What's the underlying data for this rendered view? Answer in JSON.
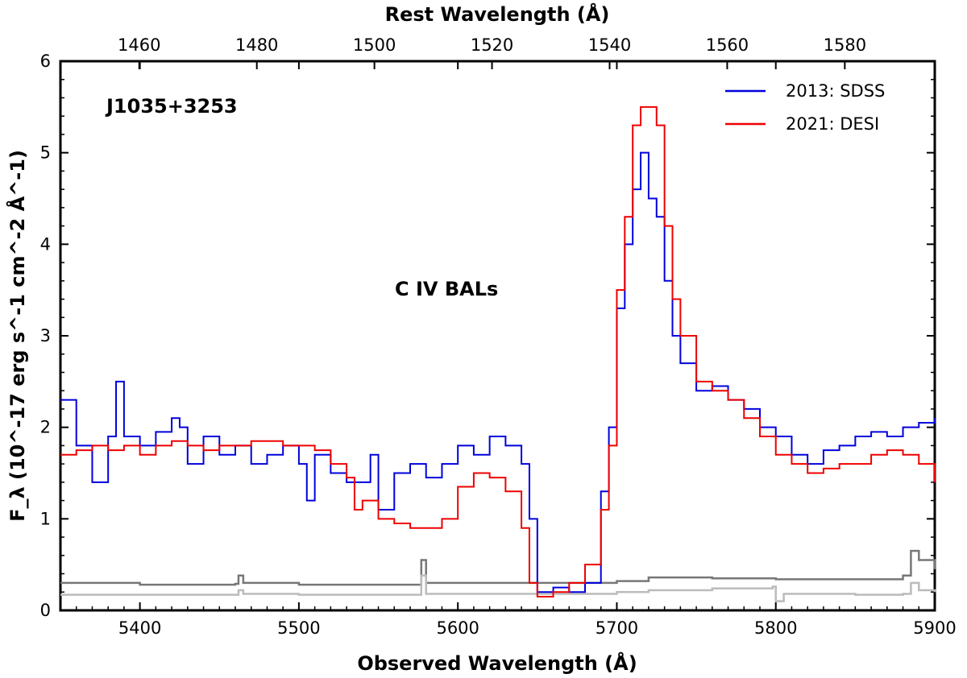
{
  "chart_data": {
    "type": "line",
    "title": "",
    "xlabel": "Observed Wavelength (Å)",
    "ylabel": "F_λ (10^-17 erg s^-1 cm^-2 Å^-1)",
    "top_xlabel": "Rest Wavelength (Å)",
    "xlim": [
      5350,
      5900
    ],
    "ylim": [
      0,
      6
    ],
    "top_xlim": [
      1446.6,
      1595.3
    ],
    "x_ticks": [
      5400,
      5500,
      5600,
      5700,
      5800,
      5900
    ],
    "y_ticks": [
      0,
      1,
      2,
      3,
      4,
      5,
      6
    ],
    "top_ticks": [
      1460,
      1480,
      1500,
      1520,
      1540,
      1560,
      1580
    ],
    "object_label": "J1035+3253",
    "feature_label": "C IV BALs",
    "legend": {
      "position": "top-right",
      "entries": [
        "2013: SDSS",
        "2021: DESI"
      ]
    },
    "colors": {
      "sdss": "#0000dd",
      "desi": "#ee0000",
      "err_sdss": "#777777",
      "err_desi": "#bbbbbb"
    },
    "series": [
      {
        "name": "2013: SDSS",
        "color": "#0000dd",
        "points": [
          [
            5350,
            2.3
          ],
          [
            5360,
            1.8
          ],
          [
            5370,
            1.4
          ],
          [
            5380,
            1.9
          ],
          [
            5385,
            2.5
          ],
          [
            5390,
            1.9
          ],
          [
            5400,
            1.8
          ],
          [
            5410,
            1.95
          ],
          [
            5420,
            2.1
          ],
          [
            5425,
            2.0
          ],
          [
            5430,
            1.6
          ],
          [
            5440,
            1.9
          ],
          [
            5450,
            1.7
          ],
          [
            5460,
            1.8
          ],
          [
            5470,
            1.6
          ],
          [
            5480,
            1.7
          ],
          [
            5490,
            1.8
          ],
          [
            5500,
            1.6
          ],
          [
            5505,
            1.2
          ],
          [
            5510,
            1.7
          ],
          [
            5520,
            1.5
          ],
          [
            5530,
            1.4
          ],
          [
            5540,
            1.4
          ],
          [
            5545,
            1.7
          ],
          [
            5550,
            1.1
          ],
          [
            5560,
            1.5
          ],
          [
            5570,
            1.6
          ],
          [
            5580,
            1.45
          ],
          [
            5590,
            1.6
          ],
          [
            5600,
            1.8
          ],
          [
            5610,
            1.7
          ],
          [
            5620,
            1.9
          ],
          [
            5630,
            1.8
          ],
          [
            5640,
            1.6
          ],
          [
            5645,
            1.0
          ],
          [
            5650,
            0.2
          ],
          [
            5660,
            0.25
          ],
          [
            5670,
            0.2
          ],
          [
            5680,
            0.3
          ],
          [
            5690,
            1.3
          ],
          [
            5695,
            2.0
          ],
          [
            5700,
            3.3
          ],
          [
            5705,
            4.0
          ],
          [
            5710,
            4.6
          ],
          [
            5715,
            5.0
          ],
          [
            5720,
            4.5
          ],
          [
            5725,
            4.3
          ],
          [
            5730,
            3.6
          ],
          [
            5735,
            3.0
          ],
          [
            5740,
            2.7
          ],
          [
            5750,
            2.4
          ],
          [
            5760,
            2.45
          ],
          [
            5770,
            2.3
          ],
          [
            5780,
            2.2
          ],
          [
            5790,
            2.0
          ],
          [
            5800,
            1.9
          ],
          [
            5810,
            1.7
          ],
          [
            5820,
            1.6
          ],
          [
            5830,
            1.75
          ],
          [
            5840,
            1.8
          ],
          [
            5850,
            1.9
          ],
          [
            5860,
            1.95
          ],
          [
            5870,
            1.9
          ],
          [
            5880,
            2.0
          ],
          [
            5890,
            2.05
          ],
          [
            5900,
            2.1
          ]
        ]
      },
      {
        "name": "2021: DESI",
        "color": "#ee0000",
        "points": [
          [
            5350,
            1.7
          ],
          [
            5360,
            1.75
          ],
          [
            5370,
            1.8
          ],
          [
            5380,
            1.75
          ],
          [
            5390,
            1.8
          ],
          [
            5400,
            1.7
          ],
          [
            5410,
            1.8
          ],
          [
            5420,
            1.85
          ],
          [
            5430,
            1.8
          ],
          [
            5440,
            1.75
          ],
          [
            5450,
            1.8
          ],
          [
            5460,
            1.8
          ],
          [
            5470,
            1.85
          ],
          [
            5480,
            1.85
          ],
          [
            5490,
            1.8
          ],
          [
            5500,
            1.8
          ],
          [
            5510,
            1.75
          ],
          [
            5520,
            1.6
          ],
          [
            5530,
            1.45
          ],
          [
            5535,
            1.1
          ],
          [
            5540,
            1.2
          ],
          [
            5550,
            1.0
          ],
          [
            5560,
            0.95
          ],
          [
            5570,
            0.9
          ],
          [
            5580,
            0.9
          ],
          [
            5590,
            1.0
          ],
          [
            5600,
            1.35
          ],
          [
            5610,
            1.5
          ],
          [
            5620,
            1.45
          ],
          [
            5630,
            1.3
          ],
          [
            5640,
            0.9
          ],
          [
            5645,
            0.3
          ],
          [
            5650,
            0.15
          ],
          [
            5660,
            0.2
          ],
          [
            5670,
            0.3
          ],
          [
            5680,
            0.5
          ],
          [
            5690,
            1.1
          ],
          [
            5695,
            1.8
          ],
          [
            5700,
            3.5
          ],
          [
            5705,
            4.3
          ],
          [
            5710,
            5.3
          ],
          [
            5715,
            5.5
          ],
          [
            5720,
            5.5
          ],
          [
            5725,
            5.3
          ],
          [
            5730,
            4.2
          ],
          [
            5735,
            3.4
          ],
          [
            5740,
            3.0
          ],
          [
            5750,
            2.5
          ],
          [
            5760,
            2.4
          ],
          [
            5770,
            2.3
          ],
          [
            5780,
            2.1
          ],
          [
            5790,
            1.9
          ],
          [
            5800,
            1.7
          ],
          [
            5810,
            1.6
          ],
          [
            5820,
            1.5
          ],
          [
            5830,
            1.55
          ],
          [
            5840,
            1.6
          ],
          [
            5850,
            1.6
          ],
          [
            5860,
            1.7
          ],
          [
            5870,
            1.75
          ],
          [
            5880,
            1.7
          ],
          [
            5890,
            1.6
          ],
          [
            5900,
            1.4
          ]
        ]
      },
      {
        "name": "SDSS error",
        "color": "#777777",
        "points": [
          [
            5350,
            0.3
          ],
          [
            5400,
            0.28
          ],
          [
            5460,
            0.29
          ],
          [
            5462,
            0.38
          ],
          [
            5465,
            0.3
          ],
          [
            5500,
            0.28
          ],
          [
            5575,
            0.28
          ],
          [
            5577,
            0.55
          ],
          [
            5580,
            0.3
          ],
          [
            5640,
            0.3
          ],
          [
            5700,
            0.32
          ],
          [
            5720,
            0.36
          ],
          [
            5760,
            0.35
          ],
          [
            5800,
            0.34
          ],
          [
            5850,
            0.34
          ],
          [
            5880,
            0.38
          ],
          [
            5885,
            0.65
          ],
          [
            5890,
            0.55
          ],
          [
            5900,
            0.45
          ]
        ]
      },
      {
        "name": "DESI error",
        "color": "#bbbbbb",
        "points": [
          [
            5350,
            0.17
          ],
          [
            5400,
            0.17
          ],
          [
            5460,
            0.17
          ],
          [
            5462,
            0.22
          ],
          [
            5465,
            0.18
          ],
          [
            5500,
            0.17
          ],
          [
            5575,
            0.17
          ],
          [
            5577,
            0.38
          ],
          [
            5580,
            0.18
          ],
          [
            5640,
            0.18
          ],
          [
            5700,
            0.2
          ],
          [
            5720,
            0.22
          ],
          [
            5760,
            0.24
          ],
          [
            5798,
            0.26
          ],
          [
            5800,
            0.1
          ],
          [
            5805,
            0.18
          ],
          [
            5850,
            0.17
          ],
          [
            5880,
            0.18
          ],
          [
            5885,
            0.3
          ],
          [
            5890,
            0.22
          ],
          [
            5900,
            0.2
          ]
        ]
      }
    ]
  }
}
